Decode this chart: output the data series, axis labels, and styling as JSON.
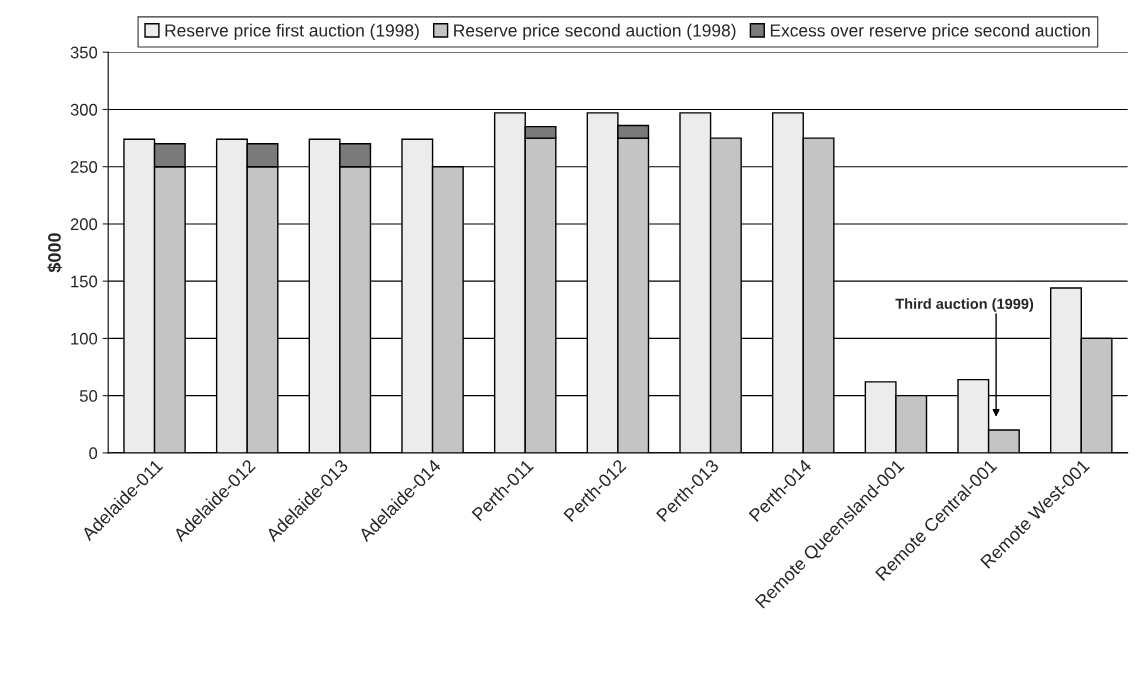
{
  "chart_data": {
    "type": "bar",
    "ylabel": "$000",
    "categories": [
      "Adelaide-011",
      "Adelaide-012",
      "Adelaide-013",
      "Adelaide-014",
      "Perth-011",
      "Perth-012",
      "Perth-013",
      "Perth-014",
      "Remote Queensland-001",
      "Remote Central-001",
      "Remote West-001"
    ],
    "series": [
      {
        "name": "Reserve price first auction (1998)",
        "color": "#ececec",
        "values": [
          274,
          274,
          274,
          274,
          297,
          297,
          297,
          297,
          62,
          64,
          144
        ]
      },
      {
        "name": "Reserve price second auction (1998)",
        "color": "#c4c4c4",
        "values": [
          250,
          250,
          250,
          250,
          275,
          275,
          275,
          275,
          50,
          20,
          100
        ]
      },
      {
        "name": "Excess over reserve price second auction",
        "color": "#7a7a7a",
        "base": [
          250,
          250,
          250,
          null,
          275,
          275,
          null,
          null,
          null,
          null,
          null
        ],
        "values": [
          20,
          20,
          20,
          null,
          10,
          11,
          null,
          null,
          null,
          null,
          null
        ]
      }
    ],
    "ylim": [
      0,
      350
    ],
    "yticks": [
      0,
      50,
      100,
      150,
      200,
      250,
      300,
      350
    ],
    "grid": "y",
    "legend": "top",
    "annotations": [
      "Third auction (1999)"
    ]
  }
}
